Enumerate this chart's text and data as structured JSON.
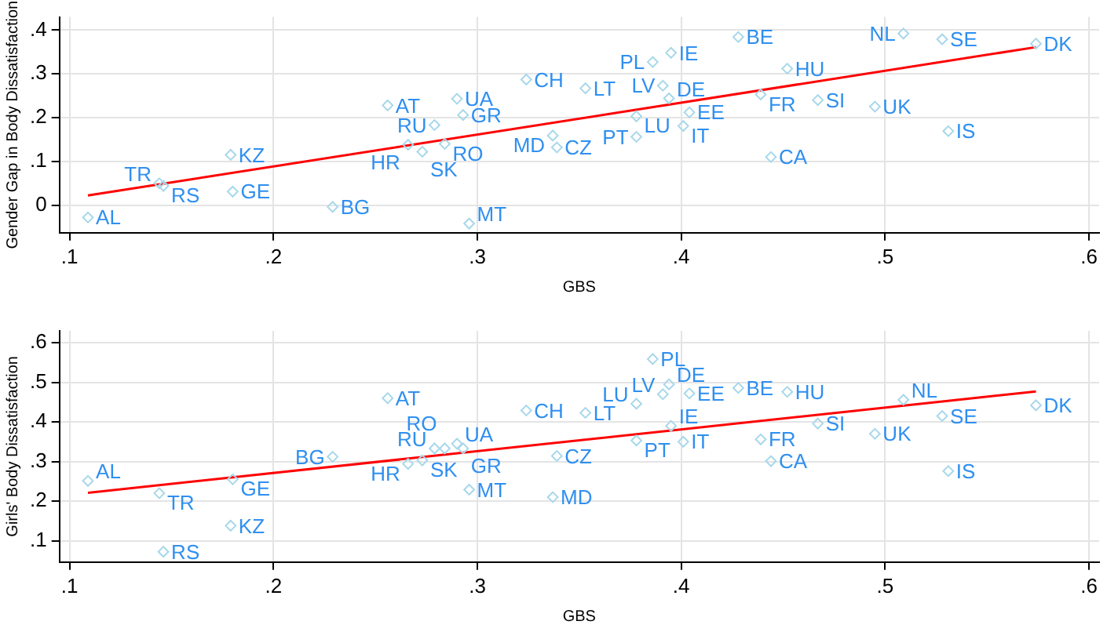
{
  "chart_data": [
    {
      "type": "scatter",
      "xlabel": "GBS",
      "ylabel": "Gender Gap in Body Dissatisfaction",
      "grid": true,
      "marker": "diamond",
      "legend": false,
      "xlim": [
        0.095,
        0.605
      ],
      "xticks": [
        {
          "value": 0.1,
          "label": ".1"
        },
        {
          "value": 0.2,
          "label": ".2"
        },
        {
          "value": 0.3,
          "label": ".3"
        },
        {
          "value": 0.4,
          "label": ".4"
        },
        {
          "value": 0.5,
          "label": ".5"
        },
        {
          "value": 0.6,
          "label": ".6"
        }
      ],
      "ylim": [
        -0.063,
        0.43
      ],
      "yticks": [
        0,
        {
          "value": 0.1,
          "label": ".1"
        },
        {
          "value": 0.2,
          "label": ".2"
        },
        {
          "value": 0.3,
          "label": ".3"
        },
        {
          "value": 0.4,
          "label": ".4"
        }
      ],
      "series": [
        {
          "color": "#a8d8ea",
          "x": [
            0.109,
            0.144,
            0.146,
            0.179,
            0.18,
            0.229,
            0.256,
            0.29,
            0.293,
            0.279,
            0.266,
            0.284,
            0.273,
            0.296,
            0.324,
            0.337,
            0.339,
            0.353,
            0.378,
            0.378,
            0.386,
            0.395,
            0.391,
            0.394,
            0.404,
            0.401,
            0.428,
            0.439,
            0.444,
            0.452,
            0.467,
            0.495,
            0.509,
            0.528,
            0.531,
            0.574
          ],
          "values": [
            -0.028,
            0.05,
            0.044,
            0.115,
            0.031,
            -0.004,
            0.228,
            0.243,
            0.206,
            0.183,
            0.138,
            0.14,
            0.122,
            -0.042,
            0.287,
            0.159,
            0.132,
            0.267,
            0.203,
            0.156,
            0.327,
            0.348,
            0.273,
            0.244,
            0.212,
            0.181,
            0.384,
            0.253,
            0.11,
            0.312,
            0.24,
            0.225,
            0.392,
            0.379,
            0.169,
            0.369
          ],
          "value_labels": [
            "AL",
            "TR",
            "RS",
            "KZ",
            "GE",
            "BG",
            "AT",
            "UA",
            "GR",
            "RU",
            "HR",
            "RO",
            "SK",
            "MT",
            "CH",
            "MD",
            "CZ",
            "LT",
            "LU",
            "PT",
            "PL",
            "IE",
            "LV",
            "DE",
            "EE",
            "IT",
            "BE",
            "FR",
            "CA",
            "HU",
            "SI",
            "UK",
            "NL",
            "SE",
            "IS",
            "DK"
          ]
        },
        {
          "type": "line",
          "marker": "none",
          "color": "#ff0000",
          "x": [
            0.109,
            0.574
          ],
          "values": [
            0.022,
            0.361
          ]
        }
      ]
    },
    {
      "type": "scatter",
      "xlabel": "GBS",
      "ylabel": "Girls' Body Dissatisfaction",
      "grid": true,
      "marker": "diamond",
      "legend": false,
      "xlim": [
        0.095,
        0.605
      ],
      "xticks": [
        {
          "value": 0.1,
          "label": ".1"
        },
        {
          "value": 0.2,
          "label": ".2"
        },
        {
          "value": 0.3,
          "label": ".3"
        },
        {
          "value": 0.4,
          "label": ".4"
        },
        {
          "value": 0.5,
          "label": ".5"
        },
        {
          "value": 0.6,
          "label": ".6"
        }
      ],
      "ylim": [
        0.046,
        0.63
      ],
      "yticks": [
        {
          "value": 0.1,
          "label": ".1"
        },
        {
          "value": 0.2,
          "label": ".2"
        },
        {
          "value": 0.3,
          "label": ".3"
        },
        {
          "value": 0.4,
          "label": ".4"
        },
        {
          "value": 0.5,
          "label": ".5"
        },
        {
          "value": 0.6,
          "label": ".6"
        }
      ],
      "series": [
        {
          "color": "#a8d8ea",
          "x": [
            0.109,
            0.144,
            0.146,
            0.179,
            0.18,
            0.229,
            0.256,
            0.29,
            0.293,
            0.279,
            0.266,
            0.284,
            0.273,
            0.296,
            0.324,
            0.337,
            0.339,
            0.353,
            0.378,
            0.378,
            0.386,
            0.395,
            0.391,
            0.394,
            0.404,
            0.401,
            0.428,
            0.439,
            0.444,
            0.452,
            0.467,
            0.495,
            0.509,
            0.528,
            0.531,
            0.574
          ],
          "values": [
            0.251,
            0.22,
            0.072,
            0.138,
            0.255,
            0.312,
            0.46,
            0.345,
            0.333,
            0.333,
            0.294,
            0.333,
            0.303,
            0.229,
            0.429,
            0.21,
            0.314,
            0.423,
            0.446,
            0.353,
            0.559,
            0.39,
            0.47,
            0.495,
            0.472,
            0.35,
            0.486,
            0.356,
            0.301,
            0.476,
            0.396,
            0.37,
            0.456,
            0.415,
            0.276,
            0.442
          ],
          "value_labels": [
            "AL",
            "TR",
            "RS",
            "KZ",
            "GE",
            "BG",
            "AT",
            "UA",
            "GR",
            "RU",
            "HR",
            "RO",
            "SK",
            "MT",
            "CH",
            "MD",
            "CZ",
            "LT",
            "LU",
            "PT",
            "PL",
            "IE",
            "LV",
            "DE",
            "EE",
            "IT",
            "BE",
            "FR",
            "CA",
            "HU",
            "SI",
            "UK",
            "NL",
            "SE",
            "IS",
            "DK"
          ]
        },
        {
          "type": "line",
          "marker": "none",
          "color": "#ff0000",
          "x": [
            0.109,
            0.574
          ],
          "values": [
            0.221,
            0.477
          ]
        }
      ]
    }
  ]
}
